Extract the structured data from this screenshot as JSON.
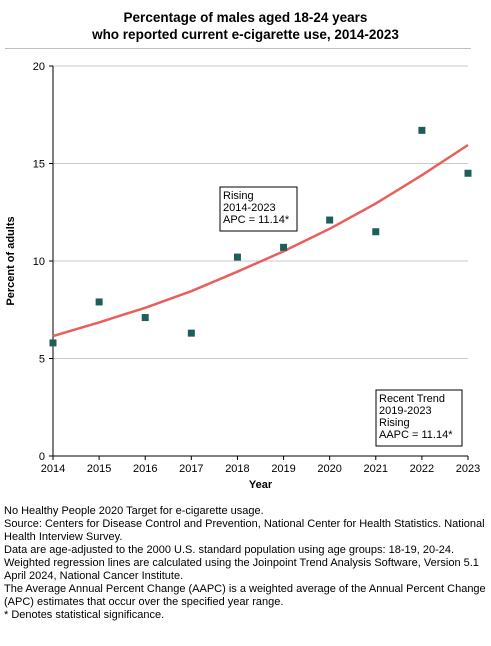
{
  "chart_data": {
    "type": "scatter",
    "title": "Percentage of males aged 18-24 years",
    "subtitle": "who reported current e-cigarette use, 2014-2023",
    "xlabel": "Year",
    "ylabel": "Percent of adults",
    "xlim": [
      2014,
      2023
    ],
    "ylim": [
      0,
      20
    ],
    "x_ticks": [
      "2014",
      "2015",
      "2016",
      "2017",
      "2018",
      "2019",
      "2020",
      "2021",
      "2022",
      "2023"
    ],
    "y_ticks": [
      "0",
      "5",
      "10",
      "15",
      "20"
    ],
    "grid": true,
    "series": [
      {
        "points": [
          {
            "x": 2014,
            "y": 5.8
          },
          {
            "x": 2015,
            "y": 7.9
          },
          {
            "x": 2016,
            "y": 7.1
          },
          {
            "x": 2017,
            "y": 6.3
          },
          {
            "x": 2018,
            "y": 10.2
          },
          {
            "x": 2019,
            "y": 10.7
          },
          {
            "x": 2020,
            "y": 12.1
          },
          {
            "x": 2021,
            "y": 11.5
          },
          {
            "x": 2022,
            "y": 16.7
          },
          {
            "x": 2023,
            "y": 14.5
          }
        ],
        "color": "#1e5e5a"
      }
    ],
    "trend_line": {
      "color": "#e8605c",
      "points": [
        {
          "x": 2014,
          "y": 6.15
        },
        {
          "x": 2015,
          "y": 6.85
        },
        {
          "x": 2016,
          "y": 7.6
        },
        {
          "x": 2017,
          "y": 8.45
        },
        {
          "x": 2018,
          "y": 9.45
        },
        {
          "x": 2019,
          "y": 10.5
        },
        {
          "x": 2020,
          "y": 11.65
        },
        {
          "x": 2021,
          "y": 12.95
        },
        {
          "x": 2022,
          "y": 14.4
        },
        {
          "x": 2023,
          "y": 15.95
        }
      ]
    },
    "annotations": [
      {
        "lines": [
          "Rising",
          "2014-2023",
          "APC = 11.14*"
        ],
        "placement": "center"
      },
      {
        "lines": [
          "Recent Trend",
          "2019-2023",
          "Rising",
          "AAPC = 11.14*"
        ],
        "placement": "bottom-right"
      }
    ]
  },
  "footnotes": [
    "No Healthy People 2020 Target for e-cigarette usage.",
    "Source: Centers for Disease Control and Prevention, National Center for Health Statistics. National Health Interview Survey.",
    "Data are age-adjusted to the 2000 U.S. standard population using age groups: 18-19, 20-24.",
    "Weighted regression lines are calculated using the Joinpoint Trend Analysis Software, Version 5.1 April 2024, National Cancer Institute.",
    "The Average Annual Percent Change (AAPC) is a weighted average of the Annual Percent Change (APC) estimates that occur over the specified year range.",
    "* Denotes statistical significance."
  ]
}
